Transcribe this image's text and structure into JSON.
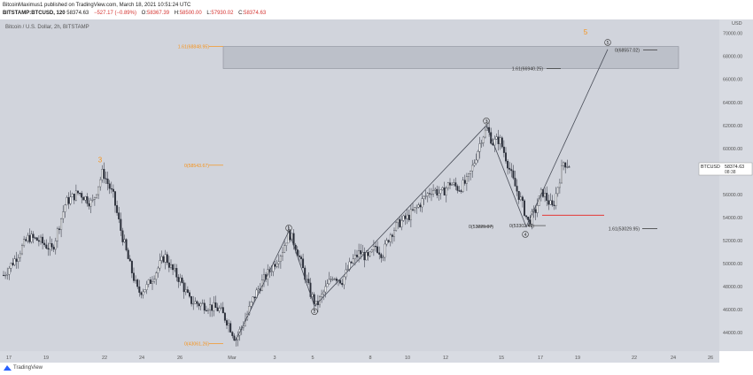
{
  "header": {
    "line1": "BitcoinMaximus1 published on TradingView.com, March 18, 2021 10:51:24 UTC",
    "symbol": "BITSTAMP:BTCUSD, 120",
    "last": "58374.63",
    "change": "−527.17 (−0.89%)",
    "o_label": "O:",
    "o": "58367.39",
    "h_label": "H:",
    "h": "58500.00",
    "l_label": "L:",
    "l": "57930.02",
    "c_label": "C:",
    "c": "58374.63"
  },
  "chart_title": "Bitcoin / U.S. Dollar, 2h, BITSTAMP",
  "footer": {
    "brand": "TradingView"
  },
  "colors": {
    "background": "#d1d4dc",
    "candle": "#2a2e39",
    "fib_orange": "#f7931a",
    "support_red": "#e53935",
    "wave_line": "#4a4e59",
    "zone": "#b8bcc6"
  },
  "chart_data": {
    "type": "candlestick",
    "title": "Bitcoin / U.S. Dollar, 2h, BITSTAMP",
    "ylabel": "USD",
    "ylim": [
      42400,
      71200
    ],
    "y_ticks": [
      "44000.00",
      "46000.00",
      "48000.00",
      "50000.00",
      "52000.00",
      "54000.00",
      "56000.00",
      "58000.00",
      "60000.00",
      "62000.00",
      "64000.00",
      "66000.00",
      "68000.00",
      "70000.00"
    ],
    "x_ticks": [
      "17",
      "19",
      "22",
      "24",
      "26",
      "Mar",
      "3",
      "5",
      "8",
      "10",
      "12",
      "15",
      "17",
      "19",
      "22",
      "24",
      "26"
    ],
    "price_label": {
      "symbol": "BTCUSD",
      "value": "58374.63",
      "countdown": "08:38"
    },
    "path": [
      [
        0,
        49000
      ],
      [
        14,
        50500
      ],
      [
        28,
        52300
      ],
      [
        40,
        52000
      ],
      [
        55,
        51200
      ],
      [
        70,
        55300
      ],
      [
        85,
        56200
      ],
      [
        100,
        55200
      ],
      [
        112,
        58000
      ],
      [
        124,
        55800
      ],
      [
        132,
        53000
      ],
      [
        142,
        50000
      ],
      [
        152,
        47500
      ],
      [
        162,
        48000
      ],
      [
        172,
        49300
      ],
      [
        182,
        50700
      ],
      [
        190,
        49500
      ],
      [
        200,
        48500
      ],
      [
        210,
        46800
      ],
      [
        220,
        46500
      ],
      [
        232,
        46300
      ],
      [
        244,
        46000
      ],
      [
        254,
        44800
      ],
      [
        262,
        43400
      ],
      [
        272,
        45000
      ],
      [
        282,
        47000
      ],
      [
        292,
        48400
      ],
      [
        304,
        49800
      ],
      [
        314,
        51000
      ],
      [
        322,
        52700
      ],
      [
        330,
        51500
      ],
      [
        338,
        49500
      ],
      [
        346,
        47500
      ],
      [
        353,
        46300
      ],
      [
        362,
        47600
      ],
      [
        372,
        49000
      ],
      [
        382,
        48500
      ],
      [
        392,
        50000
      ],
      [
        402,
        51000
      ],
      [
        412,
        50400
      ],
      [
        420,
        51500
      ],
      [
        428,
        50800
      ],
      [
        436,
        52500
      ],
      [
        446,
        53500
      ],
      [
        456,
        54000
      ],
      [
        466,
        54800
      ],
      [
        476,
        55800
      ],
      [
        484,
        56500
      ],
      [
        494,
        56000
      ],
      [
        504,
        57000
      ],
      [
        514,
        56500
      ],
      [
        524,
        57200
      ],
      [
        532,
        59000
      ],
      [
        540,
        61000
      ],
      [
        546,
        61700
      ],
      [
        552,
        60500
      ],
      [
        560,
        60800
      ],
      [
        568,
        59000
      ],
      [
        576,
        57000
      ],
      [
        584,
        55500
      ],
      [
        592,
        53600
      ],
      [
        600,
        54500
      ],
      [
        608,
        56300
      ],
      [
        614,
        55500
      ],
      [
        620,
        54800
      ],
      [
        626,
        56800
      ],
      [
        632,
        58800
      ],
      [
        640,
        58500
      ]
    ],
    "waves": {
      "labels": [
        "3",
        "1",
        "2",
        "3",
        "4",
        "5",
        "5"
      ],
      "points": [
        {
          "label": "3",
          "x_index": 112,
          "price": 58500,
          "style": "orange"
        },
        {
          "label": "1",
          "x_index": 322,
          "price": 52700,
          "style": "circle"
        },
        {
          "label": "2",
          "x_index": 351,
          "price": 46300,
          "style": "circle"
        },
        {
          "label": "3",
          "x_index": 545,
          "price": 62000,
          "style": "circle"
        },
        {
          "label": "4",
          "x_index": 590,
          "price": 53000,
          "style": "circle"
        },
        {
          "label": "5",
          "x_index": 682,
          "price": 68900,
          "style": "circle"
        },
        {
          "label": "5",
          "x_index": 657,
          "price": 69600,
          "style": "orange"
        }
      ],
      "line": [
        [
          262,
          43300
        ],
        [
          322,
          52800
        ],
        [
          351,
          46300
        ],
        [
          545,
          62000
        ],
        [
          590,
          53200
        ],
        [
          682,
          68600
        ]
      ]
    },
    "fib_levels": [
      {
        "label": "1.61(68848.95)",
        "price": 68849,
        "color": "orange"
      },
      {
        "label": "0(58543.67)",
        "price": 58544,
        "color": "orange"
      },
      {
        "label": "0(43061.26)",
        "price": 43061,
        "color": "orange"
      },
      {
        "label": "0(68557.02)",
        "price": 68557,
        "color": "dark"
      },
      {
        "label": "1.61(66940.25)",
        "price": 66940,
        "color": "dark"
      },
      {
        "label": "0(53229.07)",
        "price": 53229,
        "color": "dark"
      },
      {
        "label": "0(53302.41)",
        "price": 53302,
        "color": "dark"
      },
      {
        "label": "1.61(53029.95)",
        "price": 53030,
        "color": "dark"
      }
    ],
    "zone": {
      "price_top": 68849,
      "price_bottom": 66940
    },
    "support": {
      "price": 54200
    }
  }
}
